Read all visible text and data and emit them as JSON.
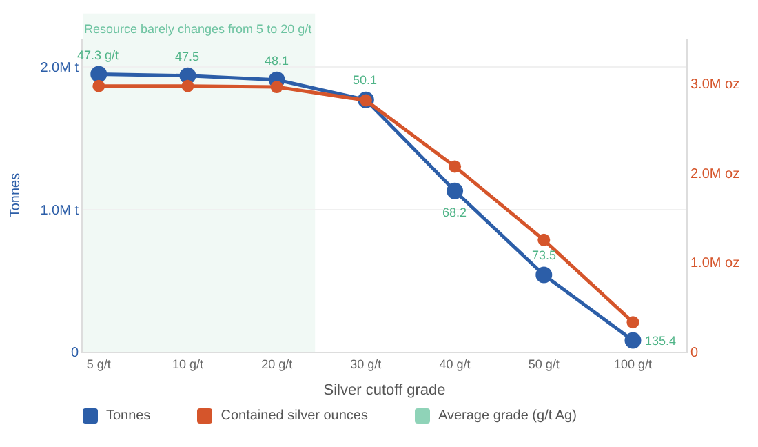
{
  "chart_data": {
    "type": "line",
    "xlabel": "Silver cutoff grade",
    "ylabel": "Tonnes",
    "categories": [
      "5 g/t",
      "10 g/t",
      "20 g/t",
      "30 g/t",
      "40 g/t",
      "50 g/t",
      "100 g/t"
    ],
    "series": [
      {
        "name": "Tonnes",
        "color": "#2c5ea8",
        "values": [
          1950000,
          1940000,
          1910000,
          1770000,
          1130000,
          540000,
          80000
        ]
      },
      {
        "name": "Contained silver ounces",
        "color": "#d5552b",
        "axis": "y2",
        "values": [
          2970000,
          2970000,
          2960000,
          2810000,
          2070000,
          1250000,
          330000
        ]
      },
      {
        "name": "Average grade (g/t Ag)",
        "color": "#8fd3b8",
        "values": [
          null,
          null,
          null,
          null,
          null,
          null,
          null
        ]
      }
    ],
    "annotations": [
      {
        "text": "47.3 g/t",
        "x": "5 g/t",
        "y": 1950000
      },
      {
        "text": "47.5",
        "x": "10 g/t",
        "y": 1940000
      },
      {
        "text": "48.1",
        "x": "20 g/t",
        "y": 1910000
      },
      {
        "text": "50.1",
        "x": "30 g/t",
        "y": 1770000
      },
      {
        "text": "68.2",
        "x": "40 g/t",
        "y": 1130000
      },
      {
        "text": "73.5",
        "x": "50 g/t",
        "y": 540000
      },
      {
        "text": "135.4",
        "x": "100 g/t",
        "y": 80000
      }
    ],
    "ylim": [
      0,
      2200000
    ],
    "yticks": [
      {
        "value": 0,
        "label": "0"
      },
      {
        "value": 1000000,
        "label": "1.0M t"
      },
      {
        "value": 2000000,
        "label": "2.0M t"
      }
    ],
    "y2lim": [
      0,
      3500000
    ],
    "y2ticks": [
      {
        "value": 0,
        "label": "0"
      },
      {
        "value": 1000000,
        "label": "1.0M oz"
      },
      {
        "value": 2000000,
        "label": "2.0M oz"
      },
      {
        "value": 3000000,
        "label": "3.0M oz"
      }
    ],
    "bands": [
      {
        "axis": "x",
        "from": "5 g/t",
        "to": "20 g/t",
        "label": "Resource barely changes from 5 to 20 g/t",
        "color": "#e3f3ec"
      }
    ],
    "grid": "y",
    "legend": "bottom",
    "marker": "circle",
    "line_style": "solid"
  }
}
